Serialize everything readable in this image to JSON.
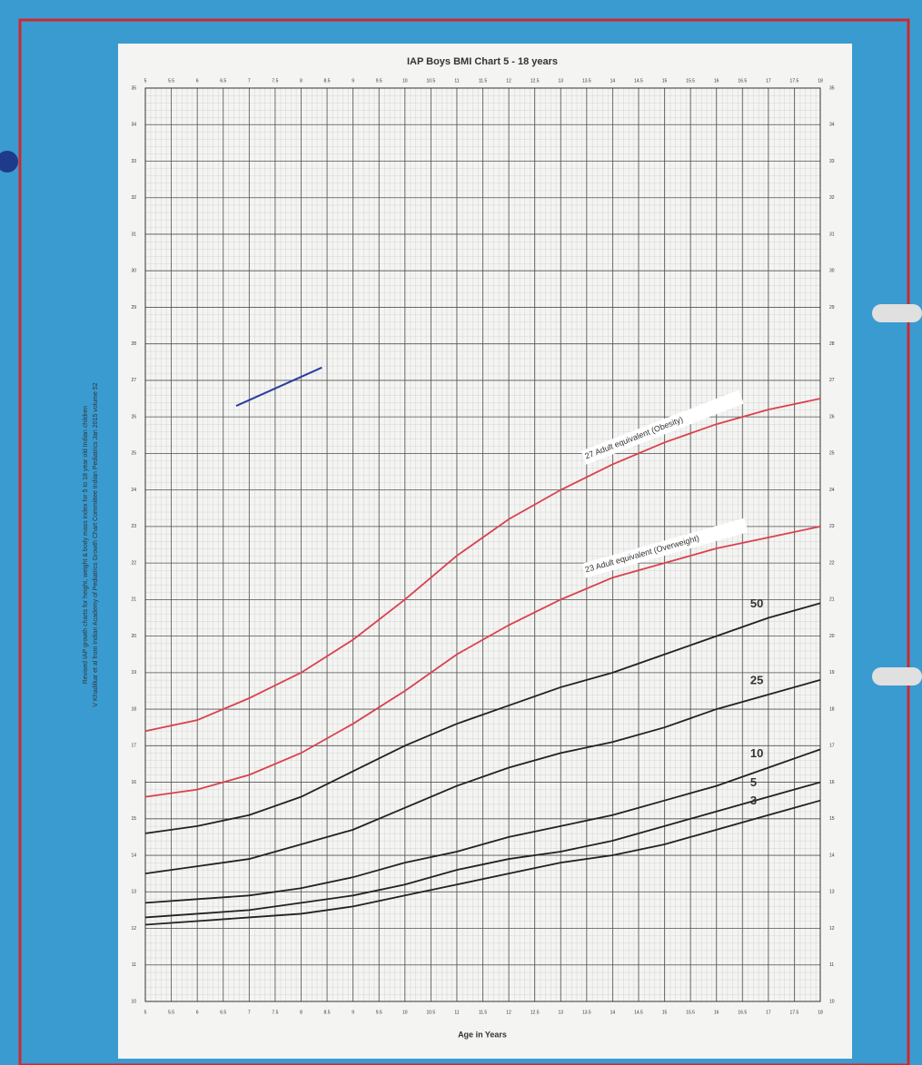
{
  "chart_data": {
    "type": "line",
    "title": "IAP Boys BMI Chart 5 - 18 years",
    "xlabel": "Age in Years",
    "side_notes": [
      "Revised IAP growth charts for height, weight & body mass index for 5 to 18 year old Indian children",
      "V Khadilkar et al from Indian Academy of Pediatrics Growth Chart Committee Indian Pediatrics Jan 2015 volume 52"
    ],
    "x": [
      5,
      6,
      7,
      8,
      9,
      10,
      11,
      12,
      13,
      14,
      15,
      16,
      17,
      18
    ],
    "series": [
      {
        "name": "27 Adult equivalent (Obesity)",
        "color": "#d9414f",
        "values": [
          17.4,
          17.7,
          18.3,
          19.0,
          19.9,
          21.0,
          22.2,
          23.2,
          24.0,
          24.7,
          25.3,
          25.8,
          26.2,
          26.5
        ]
      },
      {
        "name": "23 Adult equivalent (Overweight)",
        "color": "#d9414f",
        "values": [
          15.6,
          15.8,
          16.2,
          16.8,
          17.6,
          18.5,
          19.5,
          20.3,
          21.0,
          21.6,
          22.0,
          22.4,
          22.7,
          23.0
        ]
      },
      {
        "name": "50",
        "color": "#222222",
        "values": [
          14.6,
          14.8,
          15.1,
          15.6,
          16.3,
          17.0,
          17.6,
          18.1,
          18.6,
          19.0,
          19.5,
          20.0,
          20.5,
          20.9
        ]
      },
      {
        "name": "25",
        "color": "#222222",
        "values": [
          13.5,
          13.7,
          13.9,
          14.3,
          14.7,
          15.3,
          15.9,
          16.4,
          16.8,
          17.1,
          17.5,
          18.0,
          18.4,
          18.8
        ]
      },
      {
        "name": "10",
        "color": "#222222",
        "values": [
          12.7,
          12.8,
          12.9,
          13.1,
          13.4,
          13.8,
          14.1,
          14.5,
          14.8,
          15.1,
          15.5,
          15.9,
          16.4,
          16.9
        ]
      },
      {
        "name": "5",
        "color": "#222222",
        "values": [
          12.3,
          12.4,
          12.5,
          12.7,
          12.9,
          13.2,
          13.6,
          13.9,
          14.1,
          14.4,
          14.8,
          15.2,
          15.6,
          16.0
        ]
      },
      {
        "name": "3",
        "color": "#222222",
        "values": [
          12.1,
          12.2,
          12.3,
          12.4,
          12.6,
          12.9,
          13.2,
          13.5,
          13.8,
          14.0,
          14.3,
          14.7,
          15.1,
          15.5
        ]
      },
      {
        "color": "#2a3f9e",
        "x": [
          6.75,
          8.4
        ],
        "values": [
          26.3,
          27.35
        ]
      }
    ],
    "xlim": [
      5,
      18
    ],
    "xticks": [
      5,
      5.5,
      6,
      6.5,
      7,
      7.5,
      8,
      8.5,
      9,
      9.5,
      10,
      10.5,
      11,
      11.5,
      12,
      12.5,
      13,
      13.5,
      14,
      14.5,
      15,
      15.5,
      16,
      16.5,
      17,
      17.5,
      18
    ],
    "ylim": [
      10,
      35
    ],
    "yticks": [
      10,
      11,
      12,
      13,
      14,
      15,
      16,
      17,
      18,
      19,
      20,
      21,
      22,
      23,
      24,
      25,
      26,
      27,
      28,
      29,
      30,
      31,
      32,
      33,
      34,
      35
    ],
    "grid": true
  }
}
